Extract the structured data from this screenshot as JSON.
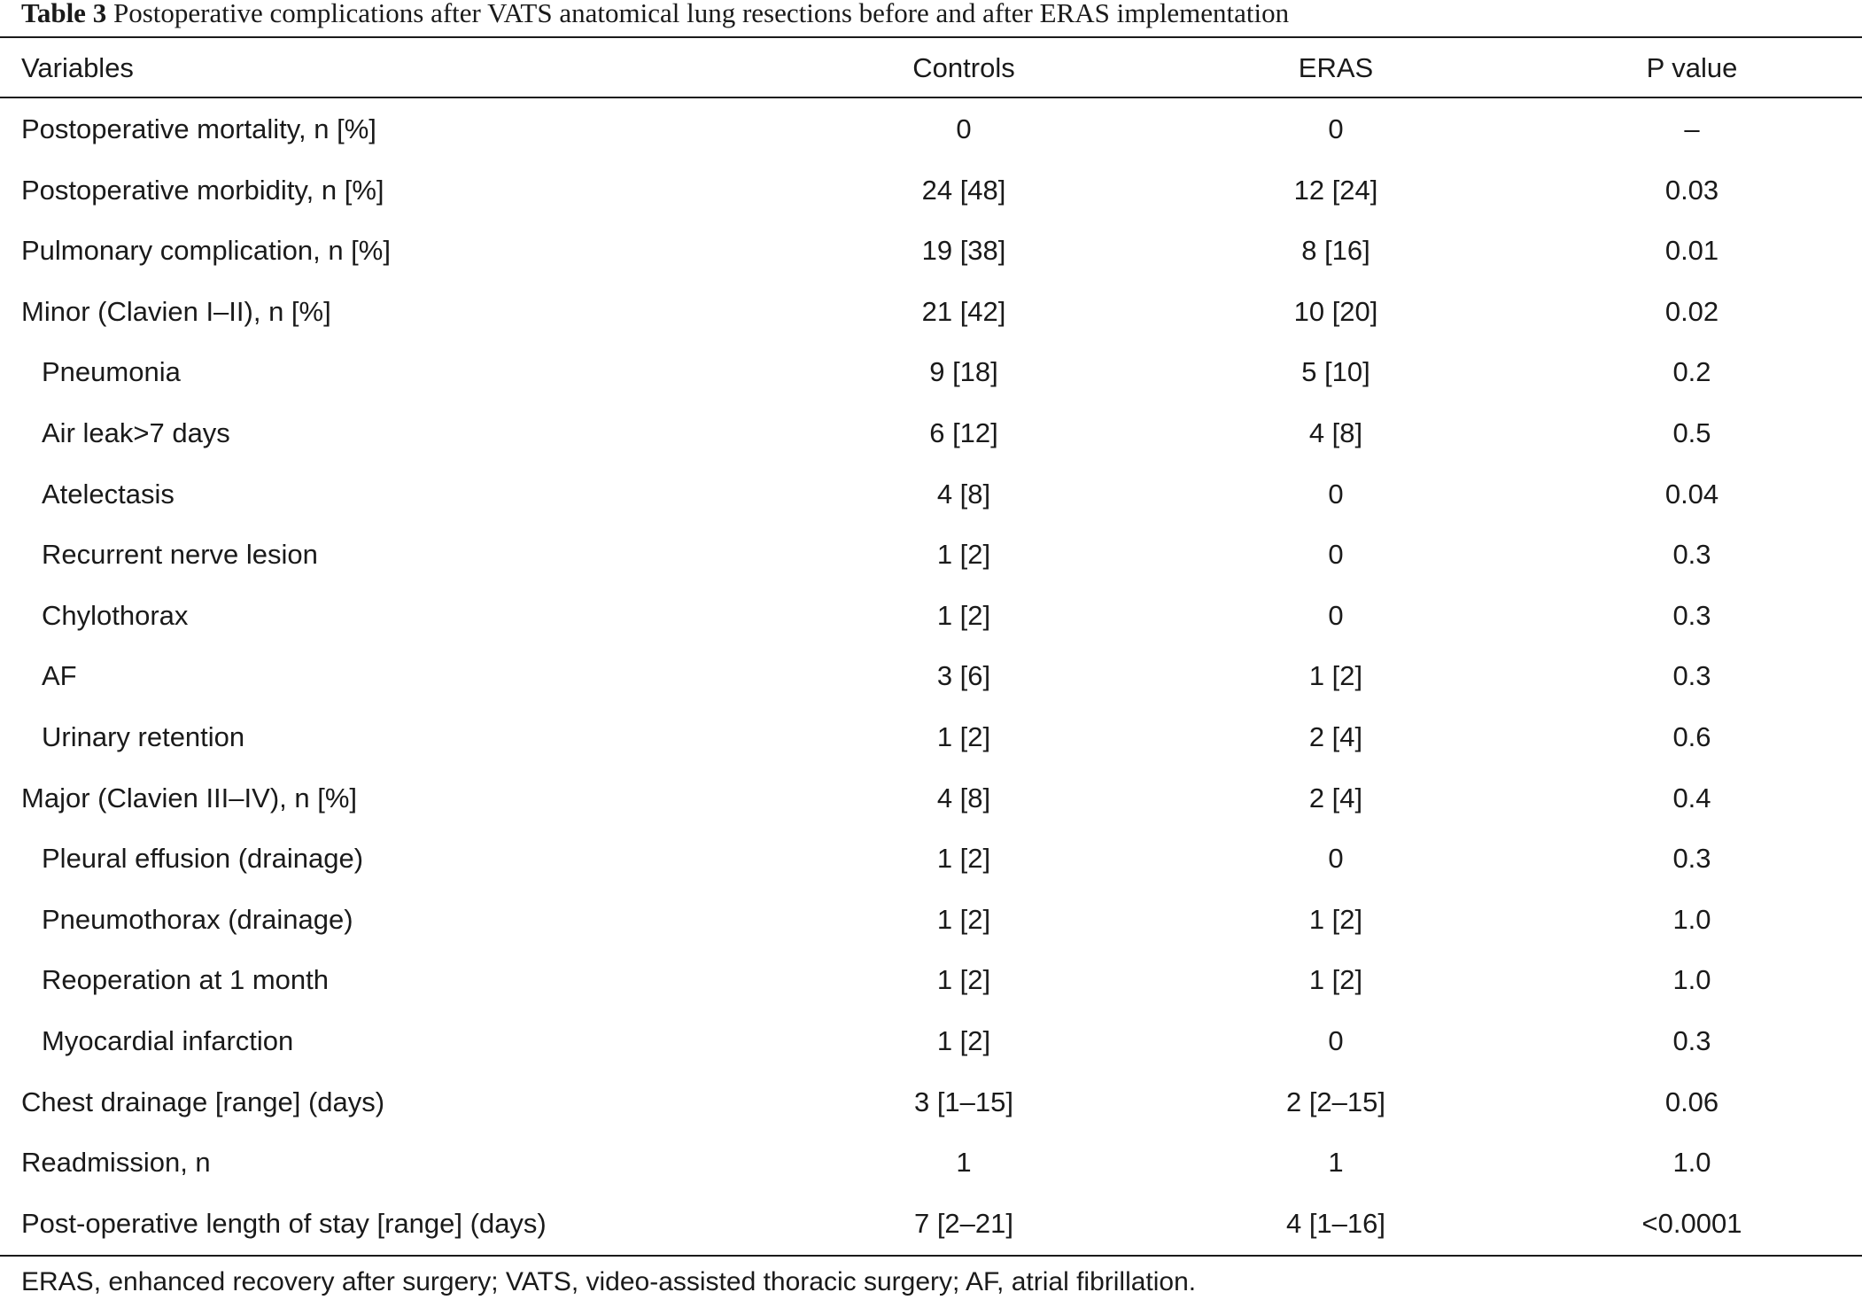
{
  "caption": {
    "label": "Table 3",
    "text": "Postoperative complications after VATS anatomical lung resections before and after ERAS implementation"
  },
  "headers": [
    "Variables",
    "Controls",
    "ERAS",
    "P value"
  ],
  "rows": [
    {
      "variable": "Postoperative mortality, n [%]",
      "indent": false,
      "controls": "0",
      "eras": "0",
      "p": "–"
    },
    {
      "variable": "Postoperative morbidity, n [%]",
      "indent": false,
      "controls": "24 [48]",
      "eras": "12 [24]",
      "p": "0.03"
    },
    {
      "variable": "Pulmonary complication, n [%]",
      "indent": false,
      "controls": "19 [38]",
      "eras": "8 [16]",
      "p": "0.01"
    },
    {
      "variable": "Minor (Clavien I–II), n [%]",
      "indent": false,
      "controls": "21 [42]",
      "eras": "10 [20]",
      "p": "0.02"
    },
    {
      "variable": "Pneumonia",
      "indent": true,
      "controls": "9 [18]",
      "eras": "5 [10]",
      "p": "0.2"
    },
    {
      "variable": "Air leak>7 days",
      "indent": true,
      "controls": "6 [12]",
      "eras": "4 [8]",
      "p": "0.5"
    },
    {
      "variable": "Atelectasis",
      "indent": true,
      "controls": "4 [8]",
      "eras": "0",
      "p": "0.04"
    },
    {
      "variable": "Recurrent nerve lesion",
      "indent": true,
      "controls": "1 [2]",
      "eras": "0",
      "p": "0.3"
    },
    {
      "variable": "Chylothorax",
      "indent": true,
      "controls": "1 [2]",
      "eras": "0",
      "p": "0.3"
    },
    {
      "variable": "AF",
      "indent": true,
      "controls": "3 [6]",
      "eras": "1 [2]",
      "p": "0.3"
    },
    {
      "variable": "Urinary retention",
      "indent": true,
      "controls": "1 [2]",
      "eras": "2 [4]",
      "p": "0.6"
    },
    {
      "variable": "Major (Clavien III–IV), n [%]",
      "indent": false,
      "controls": "4 [8]",
      "eras": "2 [4]",
      "p": "0.4"
    },
    {
      "variable": "Pleural effusion (drainage)",
      "indent": true,
      "controls": "1 [2]",
      "eras": "0",
      "p": "0.3"
    },
    {
      "variable": "Pneumothorax (drainage)",
      "indent": true,
      "controls": "1 [2]",
      "eras": "1 [2]",
      "p": "1.0"
    },
    {
      "variable": "Reoperation at 1 month",
      "indent": true,
      "controls": "1 [2]",
      "eras": "1 [2]",
      "p": "1.0"
    },
    {
      "variable": "Myocardial infarction",
      "indent": true,
      "controls": "1 [2]",
      "eras": "0",
      "p": "0.3"
    },
    {
      "variable": "Chest drainage [range] (days)",
      "indent": false,
      "controls": "3 [1–15]",
      "eras": "2 [2–15]",
      "p": "0.06"
    },
    {
      "variable": "Readmission, n",
      "indent": false,
      "controls": "1",
      "eras": "1",
      "p": "1.0"
    },
    {
      "variable": "Post-operative length of stay [range] (days)",
      "indent": false,
      "controls": "7 [2–21]",
      "eras": "4 [1–16]",
      "p": "<0.0001"
    }
  ],
  "footnote": "ERAS, enhanced recovery after surgery; VATS, video-assisted thoracic surgery; AF, atrial fibrillation."
}
